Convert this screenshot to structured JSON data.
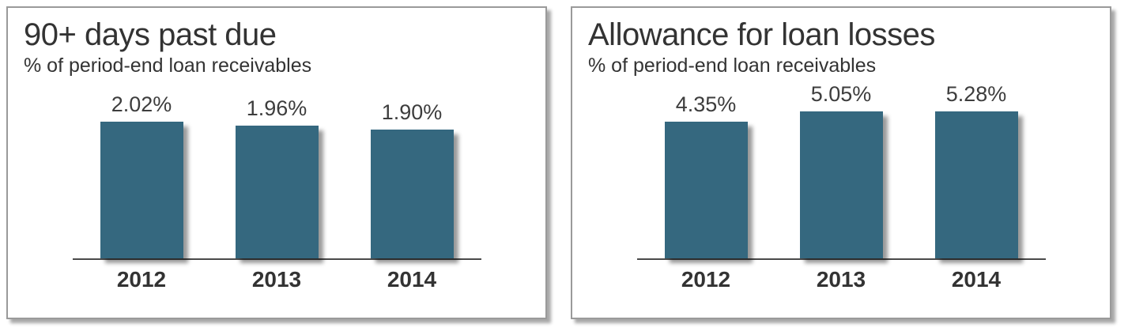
{
  "page": {
    "background": "#ffffff"
  },
  "chart_data": [
    {
      "type": "bar",
      "title": "90+ days past due",
      "subtitle": "% of period-end loan receivables",
      "categories": [
        "2012",
        "2013",
        "2014"
      ],
      "values": [
        2.02,
        1.96,
        1.9
      ],
      "value_labels": [
        "2.02%",
        "1.96%",
        "1.90%"
      ],
      "unit": "percent of period-end loan receivables",
      "bar_color": "#35687F",
      "ylim": [
        0,
        2.6
      ],
      "grid": false,
      "legend": "none"
    },
    {
      "type": "bar",
      "title": "Allowance for loan losses",
      "subtitle": "% of period-end loan receivables",
      "categories": [
        "2012",
        "2013",
        "2014"
      ],
      "values": [
        4.35,
        5.05,
        5.28
      ],
      "value_labels": [
        "4.35%",
        "5.05%",
        "5.28%"
      ],
      "unit": "percent of period-end loan receivables",
      "bar_color": "#35687F",
      "ylim": [
        0,
        5.6
      ],
      "grid": false,
      "legend": "none"
    }
  ]
}
